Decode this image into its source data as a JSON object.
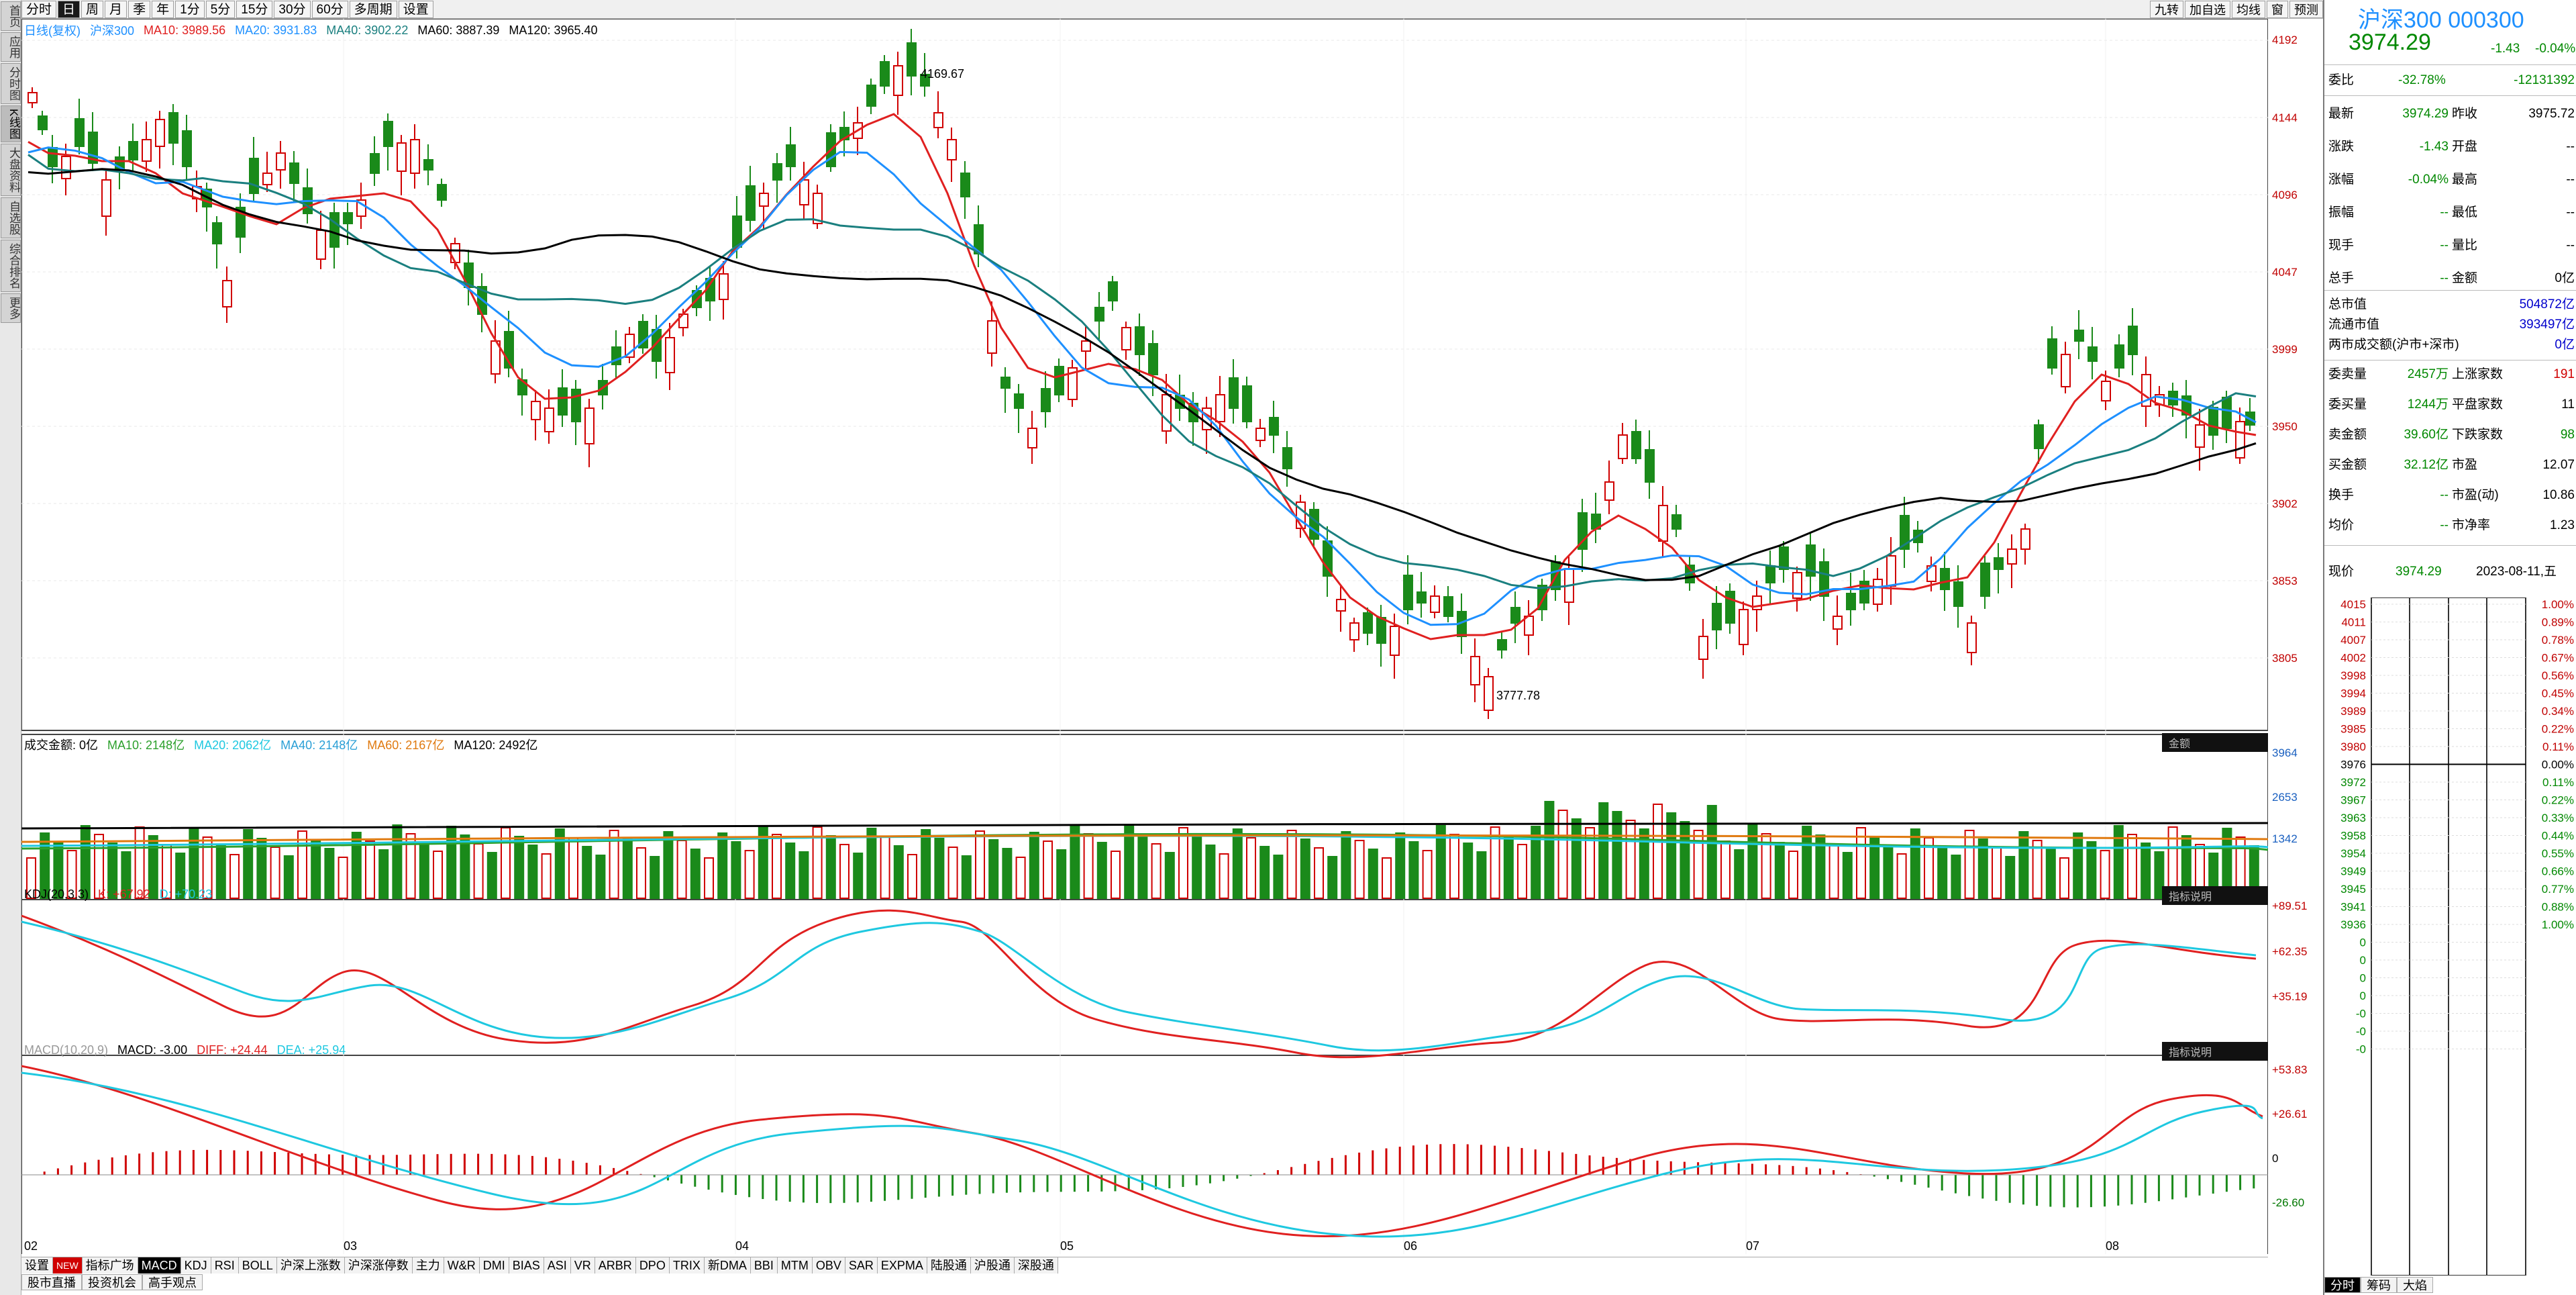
{
  "left_nav": [
    "首页",
    "应用",
    "分时图",
    "K线图",
    "大盘资料",
    "自选股",
    "综合排名",
    "更多"
  ],
  "top_periods": [
    "分时",
    "日",
    "周",
    "月",
    "季",
    "年",
    "1分",
    "5分",
    "15分",
    "30分",
    "60分",
    "多周期",
    "设置"
  ],
  "top_right_tools": [
    "九转",
    "加自选",
    "均线",
    "窗",
    "预测"
  ],
  "main_legend": {
    "title": "日线(复权)",
    "name": "沪深300",
    "ma10": "MA10: 3989.56",
    "ma20": "MA20: 3931.83",
    "ma40": "MA40: 3902.22",
    "ma60": "MA60: 3887.39",
    "ma120": "MA120: 3965.40"
  },
  "price_axis": [
    "4192",
    "4144",
    "4096",
    "4047",
    "3999",
    "3950",
    "3902",
    "3853",
    "3805"
  ],
  "annotations": {
    "high": "4169.67",
    "low": "3777.78"
  },
  "x_axis_months": [
    "02",
    "03",
    "04",
    "05",
    "06",
    "07",
    "08"
  ],
  "volume_legend": {
    "title": "成交金额: 0亿",
    "ma10": "MA10: 2148亿",
    "ma20": "MA20: 2062亿",
    "ma40": "MA40: 2148亿",
    "ma60": "MA60: 2167亿",
    "ma120": "MA120: 2492亿",
    "tag": "金额",
    "axis": [
      "3964",
      "2653",
      "1342"
    ]
  },
  "kdj_legend": {
    "title": "KDJ(20,3,3)",
    "k": "K: +67.92",
    "d": "D: +70.23",
    "tag": "指标说明",
    "axis": [
      "+89.51",
      "+62.35",
      "+35.19"
    ]
  },
  "macd_legend": {
    "title": "MACD(10,20,9)",
    "macd": "MACD: -3.00",
    "diff": "DIFF: +24.44",
    "dea": "DEA: +25.94",
    "tag": "指标说明",
    "axis": [
      "+53.83",
      "+26.61",
      "0",
      "-26.60"
    ]
  },
  "bottom_tabs": [
    "设置",
    "NEW",
    "指标广场",
    "MACD",
    "KDJ",
    "RSI",
    "BOLL",
    "沪深上涨数",
    "沪深涨停数",
    "主力",
    "W&R",
    "DMI",
    "BIAS",
    "ASI",
    "VR",
    "ARBR",
    "DPO",
    "TRIX",
    "新DMA",
    "BBI",
    "MTM",
    "OBV",
    "SAR",
    "EXPMA",
    "陆股通",
    "沪股通",
    "深股通"
  ],
  "bottom_row2": [
    "股市直播",
    "投资机会",
    "高手观点"
  ],
  "quote": {
    "name": "沪深300",
    "code": "000300",
    "price": "3974.29",
    "change": "-1.43",
    "pct": "-0.04%",
    "wei_bi_label": "委比",
    "wei_bi": "-32.78%",
    "wei_cha": "-12131392",
    "rows": [
      {
        "l": "最新",
        "v": "3974.29",
        "l2": "昨收",
        "v2": "3975.72"
      },
      {
        "l": "涨跌",
        "v": "-1.43",
        "l2": "开盘",
        "v2": "--"
      },
      {
        "l": "涨幅",
        "v": "-0.04%",
        "l2": "最高",
        "v2": "--"
      },
      {
        "l": "振幅",
        "v": "--",
        "l2": "最低",
        "v2": "--"
      },
      {
        "l": "现手",
        "v": "--",
        "l2": "量比",
        "v2": "--"
      },
      {
        "l": "总手",
        "v": "--",
        "l2": "金额",
        "v2": "0亿"
      }
    ],
    "mkt": [
      {
        "l": "总市值",
        "v": "504872亿"
      },
      {
        "l": "流通市值",
        "v": "393497亿"
      },
      {
        "l": "两市成交额(沪市+深市)",
        "v": "0亿"
      }
    ],
    "rows2": [
      {
        "l": "委卖量",
        "v": "2457万",
        "l2": "上涨家数",
        "v2": "191"
      },
      {
        "l": "委买量",
        "v": "1244万",
        "l2": "平盘家数",
        "v2": "11"
      },
      {
        "l": "卖金额",
        "v": "39.60亿",
        "l2": "下跌家数",
        "v2": "98"
      },
      {
        "l": "买金额",
        "v": "32.12亿",
        "l2": "市盈",
        "v2": "12.07"
      },
      {
        "l": "换手",
        "v": "--",
        "l2": "市盈(动)",
        "v2": "10.86"
      },
      {
        "l": "均价",
        "v": "--",
        "l2": "市净率",
        "v2": "1.23"
      }
    ],
    "now_label": "现价",
    "now_price": "3974.29",
    "date": "2023-08-11,五",
    "mini_left": [
      "4015",
      "4011",
      "4007",
      "4002",
      "3998",
      "3994",
      "3989",
      "3985",
      "3980",
      "3976",
      "3972",
      "3967",
      "3963",
      "3958",
      "3954",
      "3949",
      "3945",
      "3941",
      "3936",
      "0",
      "0",
      "0",
      "0",
      "-0",
      "-0",
      "-0"
    ],
    "mini_right": [
      "1.00%",
      "0.89%",
      "0.78%",
      "0.67%",
      "0.56%",
      "0.45%",
      "0.34%",
      "0.22%",
      "0.11%",
      "0.00%",
      "0.11%",
      "0.22%",
      "0.33%",
      "0.44%",
      "0.55%",
      "0.66%",
      "0.77%",
      "0.88%",
      "1.00%"
    ],
    "mini_tabs": [
      "分时",
      "筹码",
      "大焰"
    ]
  },
  "colors": {
    "up": "#d00000",
    "down": "#1a8a1a",
    "ma10": "#e02020",
    "ma20": "#1e90ff",
    "ma40": "#1a7f7f",
    "ma60": "#d98020",
    "ma120": "#000000"
  }
}
